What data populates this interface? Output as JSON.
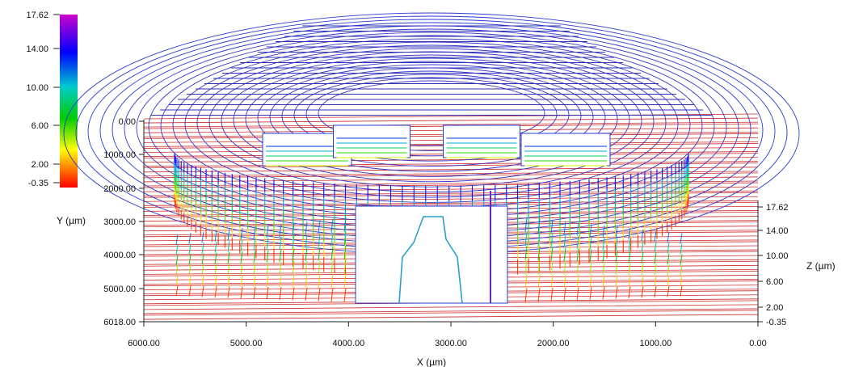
{
  "chart_data": {
    "type": "3d-surface-profile",
    "title": "",
    "x_axis": {
      "label": "X (µm)",
      "ticks": [
        "6000.00",
        "5000.00",
        "4000.00",
        "3000.00",
        "2000.00",
        "1000.00",
        "0.00"
      ],
      "range": [
        6000,
        0
      ]
    },
    "y_axis": {
      "label": "Y (µm)",
      "ticks": [
        "0.00",
        "1000.00",
        "2000.00",
        "3000.00",
        "4000.00",
        "5000.00",
        "6018.00"
      ],
      "range": [
        0,
        6018
      ]
    },
    "z_axis": {
      "label": "Z (µm)",
      "ticks": [
        "17.62",
        "14.00",
        "10.00",
        "6.00",
        "2.00",
        "-0.35"
      ],
      "range": [
        -0.35,
        17.62
      ]
    },
    "colorbar": {
      "ticks": [
        "17.62",
        "14.00",
        "10.00",
        "6.00",
        "2.00",
        "-0.35"
      ],
      "range": [
        -0.35,
        17.62
      ],
      "colors": [
        "#ff0000",
        "#ff8800",
        "#ffff00",
        "#00cc00",
        "#00cccc",
        "#0000ff",
        "#cc00cc"
      ]
    },
    "surface": {
      "base_height": -0.35,
      "mesa_height": 17.62,
      "mesa_x_range": [
        700,
        5700
      ],
      "mesa_y_range": [
        0,
        2400
      ],
      "mesa_extent_y_max": 6018
    },
    "grid": false,
    "legend": "none"
  }
}
